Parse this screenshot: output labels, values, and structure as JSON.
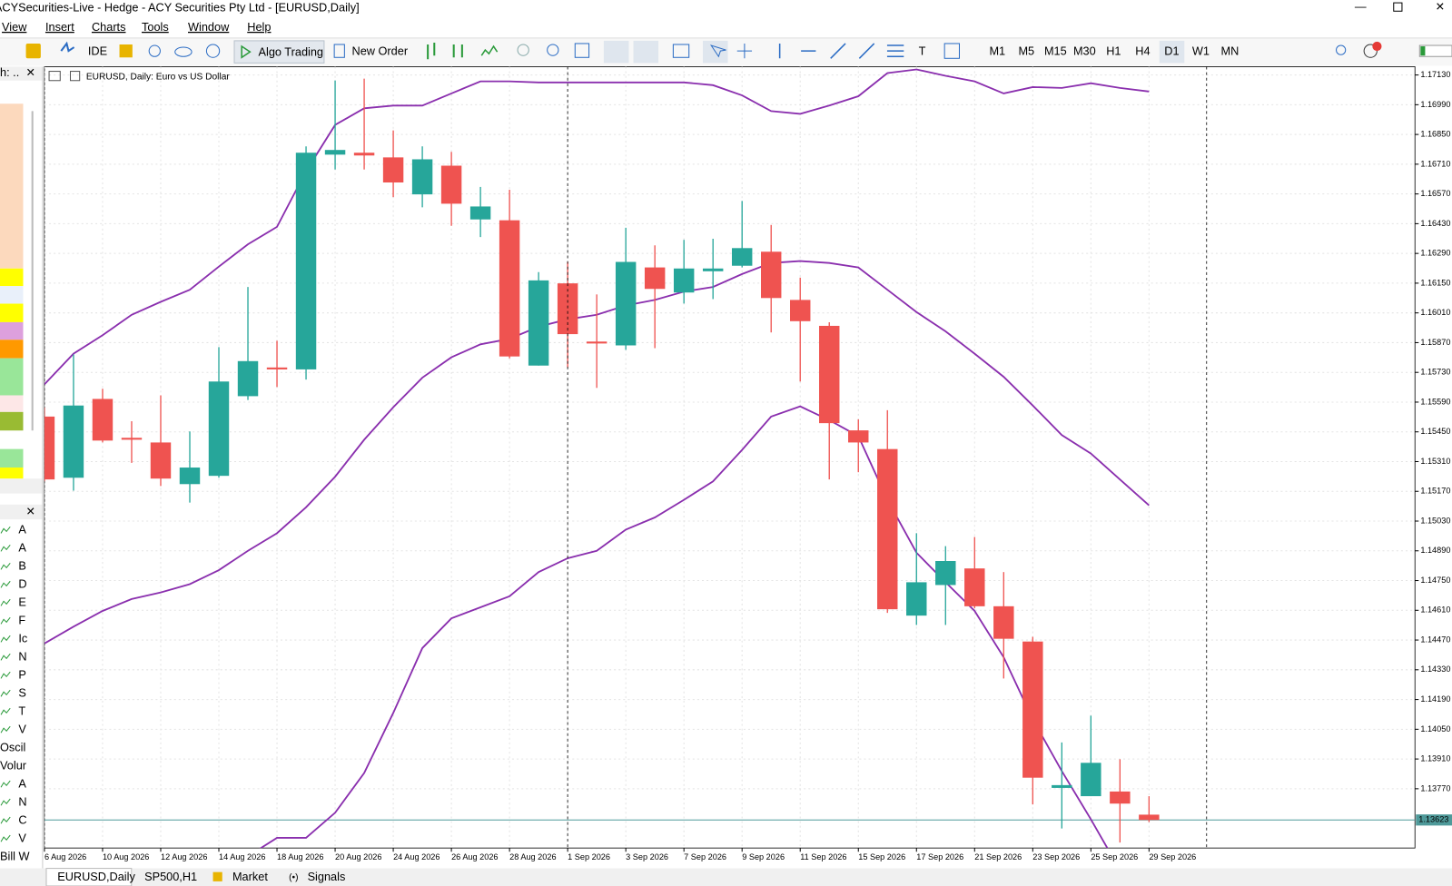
{
  "window": {
    "title": "ACYSecurities-Live - Hedge - ACY Securities Pty Ltd - [EURUSD,Daily]",
    "menu": [
      "View",
      "Insert",
      "Charts",
      "Tools",
      "Window",
      "Help"
    ],
    "toolbar": [
      "IDE",
      "Algo Trading",
      "New Order"
    ],
    "timeframes": [
      "M1",
      "M5",
      "M15",
      "M30",
      "H1",
      "H4",
      "D1",
      "W1",
      "MN"
    ],
    "active_timeframe": "D1",
    "chart_label": "EURUSD, Daily:  Euro vs US Dollar",
    "tabs": [
      "EURUSD,Daily",
      "SP500,H1",
      "Market",
      "Signals"
    ],
    "panel_header": "h: ..",
    "navigator": [
      "A",
      "A",
      "B",
      "D",
      "E",
      "F",
      "Ic",
      "N",
      "P",
      "S",
      "T",
      "V",
      "Oscil",
      "Volur",
      "A",
      "N",
      "C",
      "V",
      "Bill W"
    ]
  },
  "chart_data": {
    "type": "candlestick",
    "categories": [
      "6 Aug 2026",
      null,
      "10 Aug 2026",
      null,
      "12 Aug 2026",
      null,
      "14 Aug 2026",
      null,
      "18 Aug 2026",
      null,
      "20 Aug 2026",
      null,
      "24 Aug 2026",
      null,
      "26 Aug 2026",
      null,
      "28 Aug 2026",
      null,
      "1 Sep 2026",
      null,
      "3 Sep 2026",
      null,
      "7 Sep 2026",
      null,
      "9 Sep 2026",
      null,
      "11 Sep 2026",
      null,
      "15 Sep 2026",
      null,
      "17 Sep 2026",
      null,
      "21 Sep 2026",
      null,
      "23 Sep 2026",
      null,
      "25 Sep 2026",
      null,
      "29 Sep 2026"
    ],
    "open": [
      1.15522,
      1.15234,
      1.15605,
      1.15422,
      1.154,
      1.15204,
      1.15243,
      1.15618,
      1.15753,
      1.15744,
      1.16755,
      1.16764,
      1.16742,
      1.16568,
      1.16703,
      1.1645,
      1.16446,
      1.15762,
      1.16149,
      1.15875,
      1.15857,
      1.16224,
      1.16106,
      1.16206,
      1.16232,
      1.16298,
      1.16071,
      1.15949,
      1.15457,
      1.15369,
      1.14585,
      1.14729,
      1.14807,
      1.14629,
      1.14463,
      1.13774,
      1.13735,
      1.13757,
      1.13648
    ],
    "high": [
      1.15565,
      1.15814,
      1.15653,
      1.155,
      1.15622,
      1.15452,
      1.15849,
      1.16132,
      1.15879,
      1.16794,
      1.17104,
      1.17113,
      1.16869,
      1.16794,
      1.16768,
      1.16603,
      1.1659,
      1.16202,
      1.1625,
      1.16097,
      1.16411,
      1.16328,
      1.16354,
      1.16359,
      1.16537,
      1.16424,
      1.16176,
      1.15966,
      1.15509,
      1.15552,
      1.14973,
      1.14912,
      1.14955,
      1.1479,
      1.14485,
      1.13988,
      1.14114,
      1.13909,
      1.13735
    ],
    "low": [
      1.15217,
      1.15173,
      1.154,
      1.15304,
      1.15195,
      1.15117,
      1.15234,
      1.156,
      1.15661,
      1.15696,
      1.16685,
      1.16685,
      1.16555,
      1.16507,
      1.1642,
      1.16367,
      1.15796,
      1.15762,
      1.15753,
      1.15657,
      1.15836,
      1.15844,
      1.16054,
      1.16075,
      1.16224,
      1.15918,
      1.15687,
      1.15226,
      1.1526,
      1.14598,
      1.14541,
      1.14541,
      1.1462,
      1.14289,
      1.13696,
      1.13583,
      1.13735,
      1.13517,
      1.13613
    ],
    "close": [
      1.15226,
      1.15574,
      1.15409,
      1.15413,
      1.1523,
      1.15282,
      1.15687,
      1.15783,
      1.15744,
      1.16764,
      1.16777,
      1.16751,
      1.16624,
      1.16733,
      1.16524,
      1.16511,
      1.15805,
      1.16163,
      1.1591,
      1.15866,
      1.1625,
      1.16123,
      1.16219,
      1.16219,
      1.16315,
      1.1608,
      1.15971,
      1.15491,
      1.154,
      1.14615,
      1.14742,
      1.14842,
      1.14629,
      1.14476,
      1.13822,
      1.13787,
      1.13892,
      1.137,
      1.13623
    ],
    "up_color": "#26a69a",
    "down_color": "#ef5350",
    "lines": [
      {
        "color": "#8a2fae",
        "values": [
          1.15674,
          1.15818,
          1.15905,
          1.16001,
          1.16062,
          1.16119,
          1.16228,
          1.16333,
          1.16415,
          1.16677,
          1.16895,
          1.16973,
          1.16986,
          1.16986,
          1.17043,
          1.171,
          1.171,
          1.17095,
          1.17095,
          1.17095,
          1.17095,
          1.17095,
          1.17095,
          1.17082,
          1.17034,
          1.1696,
          1.16947,
          1.16986,
          1.1703,
          1.17139,
          1.17156,
          1.17126,
          1.171,
          1.17043,
          1.17073,
          1.17069,
          1.17091,
          1.17069,
          1.17052
        ]
      },
      {
        "color": "#8a2fae",
        "values": [
          1.14454,
          1.14533,
          1.14607,
          1.14663,
          1.14694,
          1.14733,
          1.14799,
          1.1489,
          1.14973,
          1.15095,
          1.15239,
          1.15413,
          1.15566,
          1.15705,
          1.15801,
          1.15862,
          1.15888,
          1.15945,
          1.1598,
          1.16001,
          1.16045,
          1.16071,
          1.1611,
          1.16132,
          1.16193,
          1.16245,
          1.16254,
          1.16245,
          1.16224,
          1.16119,
          1.16014,
          1.15923,
          1.15818,
          1.15709,
          1.15574,
          1.15435,
          1.15348,
          1.15226,
          1.15104
        ]
      },
      {
        "color": "#8a2fae",
        "values": [
          null,
          null,
          null,
          null,
          null,
          null,
          null,
          1.13452,
          1.13539,
          1.13539,
          1.13657,
          1.13844,
          1.14127,
          1.14432,
          1.14572,
          1.14624,
          1.14676,
          1.1479,
          1.14855,
          1.1489,
          1.1499,
          1.15047,
          1.1513,
          1.15217,
          1.15365,
          1.15522,
          1.1557,
          1.15505,
          1.1543,
          1.1513,
          1.14881,
          1.14742,
          1.14607,
          1.14389,
          1.14097,
          1.13853,
          1.13626,
          1.13387,
          null
        ]
      }
    ],
    "last_price": 1.13623,
    "last_price_color": "#4f9a9a",
    "ylim": [
      1.13491,
      1.17169
    ],
    "yticks": [
      {
        "value": 1.1713,
        "label": "1.17130"
      },
      {
        "value": 1.1699,
        "label": "1.16990"
      },
      {
        "value": 1.1685,
        "label": "1.16850"
      },
      {
        "value": 1.1671,
        "label": "1.16710"
      },
      {
        "value": 1.1657,
        "label": "1.16570"
      },
      {
        "value": 1.1643,
        "label": "1.16430"
      },
      {
        "value": 1.1629,
        "label": "1.16290"
      },
      {
        "value": 1.1615,
        "label": "1.16150"
      },
      {
        "value": 1.1601,
        "label": "1.16010"
      },
      {
        "value": 1.1587,
        "label": "1.15870"
      },
      {
        "value": 1.1573,
        "label": "1.15730"
      },
      {
        "value": 1.1559,
        "label": "1.15590"
      },
      {
        "value": 1.1545,
        "label": "1.15450"
      },
      {
        "value": 1.1531,
        "label": "1.15310"
      },
      {
        "value": 1.1517,
        "label": "1.15170"
      },
      {
        "value": 1.1503,
        "label": "1.15030"
      },
      {
        "value": 1.1489,
        "label": "1.14890"
      },
      {
        "value": 1.1475,
        "label": "1.14750"
      },
      {
        "value": 1.1461,
        "label": "1.14610"
      },
      {
        "value": 1.1447,
        "label": "1.14470"
      },
      {
        "value": 1.1433,
        "label": "1.14330"
      },
      {
        "value": 1.1419,
        "label": "1.14190"
      },
      {
        "value": 1.1405,
        "label": "1.14050"
      },
      {
        "value": 1.1391,
        "label": "1.13910"
      },
      {
        "value": 1.1377,
        "label": "1.13770"
      }
    ],
    "grid": true
  }
}
